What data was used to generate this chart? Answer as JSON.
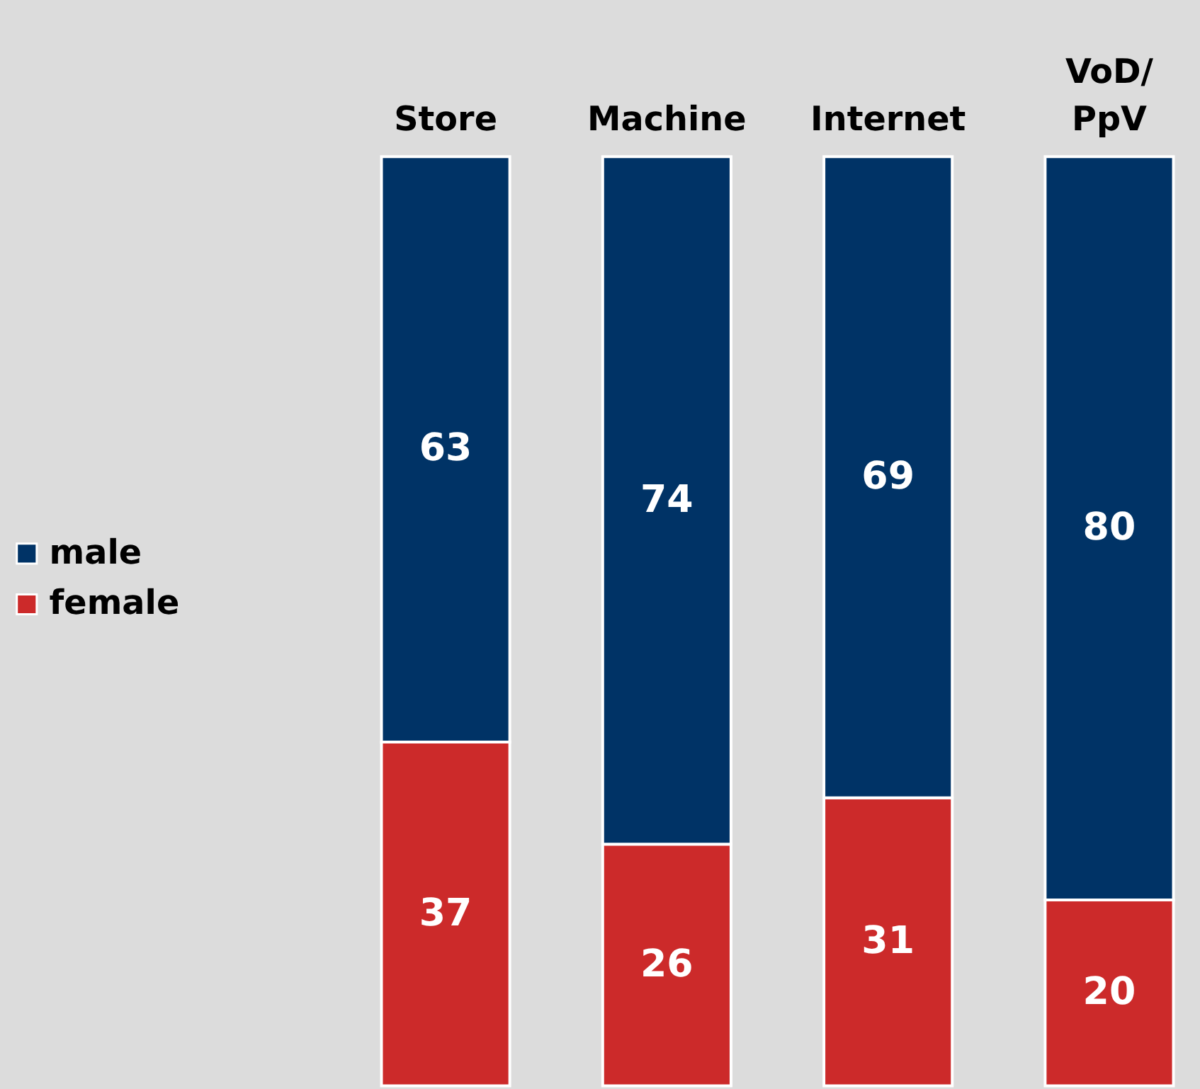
{
  "chart_data": {
    "type": "bar",
    "stacked": true,
    "data_labels": true,
    "legend": "left",
    "categories": [
      "Store",
      "Machine",
      "Internet",
      "VoD/PpV"
    ],
    "series": [
      {
        "name": "female",
        "color": "#cc2a2a",
        "values": [
          37,
          26,
          31,
          20
        ]
      },
      {
        "name": "male",
        "color": "#003366",
        "values": [
          63,
          74,
          69,
          80
        ]
      }
    ]
  }
}
